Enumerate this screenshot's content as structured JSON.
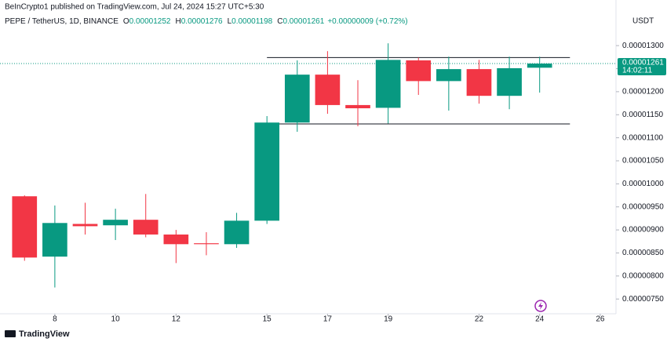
{
  "header": {
    "publisher": "BeInCrypto1 published on TradingView.com, Jul 24, 2024 15:27 UTC+5:30",
    "symbol": "PEPE / TetherUS, 1D, BINANCE",
    "ohlc": [
      {
        "key": "O",
        "value": "0.00001252"
      },
      {
        "key": "H",
        "value": "0.00001276"
      },
      {
        "key": "L",
        "value": "0.00001198"
      },
      {
        "key": "C",
        "value": "0.00001261"
      }
    ],
    "change": "+0.00000009 (+0.72%)",
    "currency": "USDT",
    "price_label": "0.00001261",
    "countdown": "14:02:11",
    "brand": "TradingView"
  },
  "chart_data": {
    "type": "candlestick",
    "x": [
      7,
      8,
      9,
      10,
      11,
      12,
      13,
      14,
      15,
      16,
      17,
      18,
      19,
      20,
      21,
      22,
      23,
      24
    ],
    "open": [
      9.73e-06,
      8.42e-06,
      9.13e-06,
      9.1e-06,
      9.22e-06,
      8.9e-06,
      8.71e-06,
      8.69e-06,
      9.2e-06,
      1.133e-05,
      1.237e-05,
      1.171e-05,
      1.165e-05,
      1.268e-05,
      1.223e-05,
      1.249e-05,
      1.191e-05,
      1.252e-05
    ],
    "high": [
      9.75e-06,
      9.53e-06,
      9.59e-06,
      9.46e-06,
      9.78e-06,
      9e-06,
      8.95e-06,
      9.37e-06,
      1.147e-05,
      1.268e-05,
      1.288e-05,
      1.225e-05,
      1.305e-05,
      1.274e-05,
      1.276e-05,
      1.269e-05,
      1.276e-05,
      1.276e-05
    ],
    "low": [
      8.33e-06,
      7.75e-06,
      8.9e-06,
      8.78e-06,
      8.84e-06,
      8.28e-06,
      8.45e-06,
      8.61e-06,
      9.13e-06,
      1.113e-05,
      1.152e-05,
      1.125e-05,
      1.131e-05,
      1.193e-05,
      1.159e-05,
      1.174e-05,
      1.162e-05,
      1.198e-05
    ],
    "close": [
      8.4e-06,
      9.15e-06,
      9.08e-06,
      9.22e-06,
      8.9e-06,
      8.69e-06,
      8.69e-06,
      9.2e-06,
      1.133e-05,
      1.237e-05,
      1.171e-05,
      1.164e-05,
      1.269e-05,
      1.223e-05,
      1.249e-05,
      1.191e-05,
      1.251e-05,
      1.261e-05
    ],
    "up_color": "#089981",
    "down_color": "#f23645",
    "levels": [
      1.274e-05,
      1.13e-05
    ],
    "last_price": 1.261e-05,
    "xlim": [
      6.19,
      26.52
    ],
    "xticks": [
      8,
      10,
      12,
      15,
      17,
      19,
      22,
      24,
      26
    ],
    "ylim": [
      7.18e-06,
      1.399e-05
    ],
    "yticks": [
      {
        "value": 7.5e-06,
        "label": "0.00000750"
      },
      {
        "value": 8e-06,
        "label": "0.00000800"
      },
      {
        "value": 8.5e-06,
        "label": "0.00000850"
      },
      {
        "value": 9e-06,
        "label": "0.00000900"
      },
      {
        "value": 9.5e-06,
        "label": "0.00000950"
      },
      {
        "value": 1e-05,
        "label": "0.00001000"
      },
      {
        "value": 1.05e-05,
        "label": "0.00001050"
      },
      {
        "value": 1.1e-05,
        "label": "0.00001100"
      },
      {
        "value": 1.15e-05,
        "label": "0.00001150"
      },
      {
        "value": 1.2e-05,
        "label": "0.00001200"
      },
      {
        "value": 1.25e-05,
        "label": "0.00001250"
      },
      {
        "value": 1.3e-05,
        "label": "0.00001300"
      }
    ],
    "grid": false
  }
}
